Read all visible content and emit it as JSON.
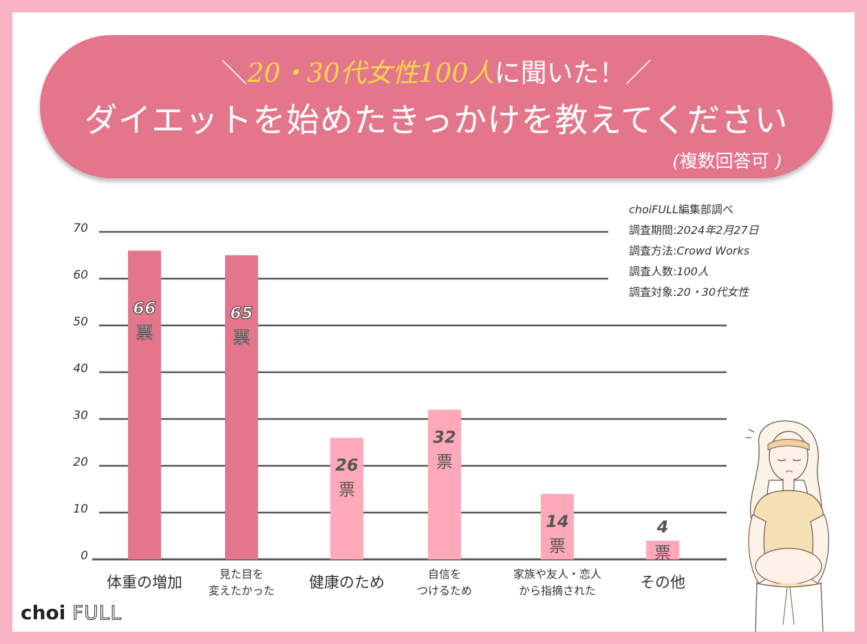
{
  "header": {
    "pre": "＼",
    "highlight1": "20・30代女性100人",
    "tail": "に聞いた！",
    "post": "／",
    "title": "ダイエットを始めたきっかけを教えてください",
    "note": "複数回答可"
  },
  "survey": {
    "lines": [
      {
        "k": "",
        "v": "choiFULL編集部調べ"
      },
      {
        "k": "調査期間:",
        "v": "2024年2月27日"
      },
      {
        "k": "調査方法:",
        "v": "Crowd Works"
      },
      {
        "k": "調査人数:",
        "v": "100人"
      },
      {
        "k": "調査対象:",
        "v": "20・30代女性"
      }
    ]
  },
  "logo": {
    "choi": "choi",
    "full": "FULL"
  },
  "colors": {
    "dark": "#e4768b",
    "light": "#ffa9ba",
    "grid": "#555555",
    "bg": "#f9b3c2"
  },
  "chart_data": {
    "type": "bar",
    "categories": [
      "体重の増加",
      "見た目を\n変えたかった",
      "健康のため",
      "自信を\nつけるため",
      "家族や友人・恋人\nから指摘された",
      "その他"
    ],
    "values": [
      66,
      65,
      26,
      32,
      14,
      4
    ],
    "value_unit": "票",
    "bar_colors": [
      "#e4768b",
      "#e4768b",
      "#ffa9ba",
      "#ffa9ba",
      "#ffa9ba",
      "#ffa9ba"
    ],
    "yticks": [
      0,
      10,
      20,
      30,
      40,
      50,
      60,
      70
    ],
    "ylim": [
      0,
      70
    ],
    "grid": true
  }
}
